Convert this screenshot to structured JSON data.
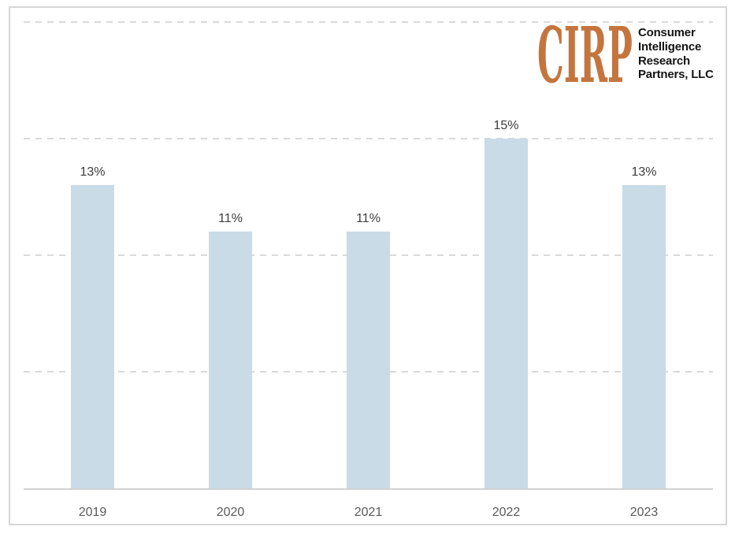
{
  "logo": {
    "wordmark": "CIRP",
    "wordmark_color": "#c4753e",
    "company_lines": [
      "Consumer",
      "Intelligence",
      "Research",
      "Partners, LLC"
    ],
    "text_color": "#141414"
  },
  "chart_data": {
    "type": "bar",
    "title": "",
    "xlabel": "",
    "ylabel": "",
    "categories": [
      "2019",
      "2020",
      "2021",
      "2022",
      "2023"
    ],
    "values": [
      13,
      11,
      11,
      15,
      13
    ],
    "labels": [
      "13%",
      "11%",
      "11%",
      "15%",
      "13%"
    ],
    "ylim": [
      0,
      20
    ],
    "gridlines": [
      5,
      10,
      15,
      20
    ],
    "grid_style": "dashed",
    "legend": "none",
    "y_tick_labels_visible": false,
    "bar_color": "#c8dbe7",
    "label_color": "#3d3d3d",
    "axis_label_color": "#595959",
    "gridline_color": "#d9d9d9",
    "axis_line_color": "#d2d2d2"
  }
}
